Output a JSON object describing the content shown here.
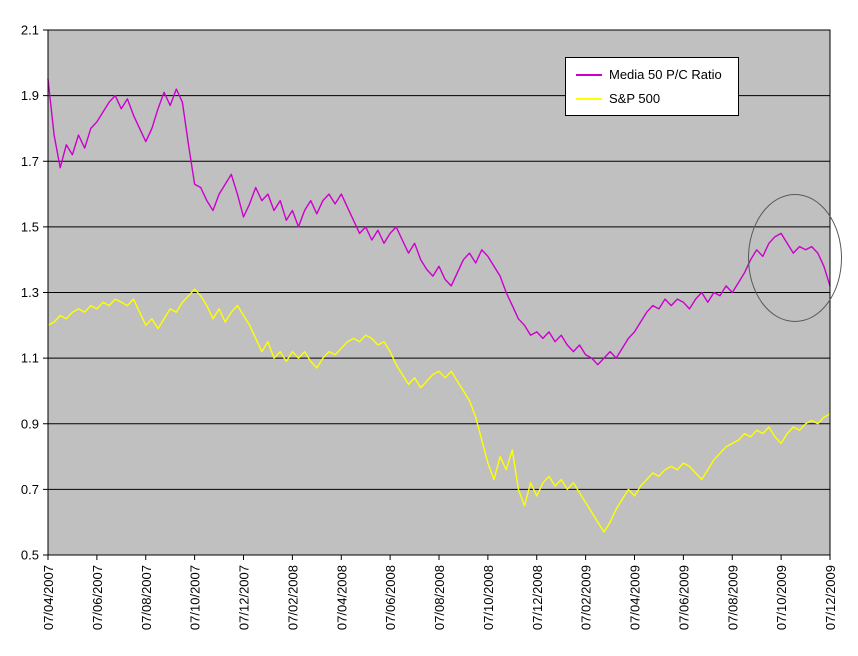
{
  "chart_data": {
    "type": "line",
    "title": "",
    "xlabel": "",
    "ylabel": "",
    "grid": true,
    "plot_background": "#c0c0c0",
    "gridline_color": "#000000",
    "legend_position": "top-right",
    "ylim": [
      0.5,
      2.1
    ],
    "y_tick_step": 0.2,
    "y_tick_labels": [
      "2.1",
      "1.9",
      "1.7",
      "1.5",
      "1.3",
      "1.1",
      "0.9",
      "0.7",
      "0.5"
    ],
    "x_tick_labels": [
      "07/04/2007",
      "07/06/2007",
      "07/08/2007",
      "07/10/2007",
      "07/12/2007",
      "07/02/2008",
      "07/04/2008",
      "07/06/2008",
      "07/08/2008",
      "07/10/2008",
      "07/12/2008",
      "07/02/2009",
      "07/04/2009",
      "07/06/2009",
      "07/08/2009",
      "07/10/2009",
      "07/12/2009"
    ],
    "series": [
      {
        "name": "Media 50 P/C Ratio",
        "color": "#cc00cc",
        "values": [
          1.95,
          1.78,
          1.68,
          1.75,
          1.72,
          1.78,
          1.74,
          1.8,
          1.82,
          1.85,
          1.88,
          1.9,
          1.86,
          1.89,
          1.84,
          1.8,
          1.76,
          1.8,
          1.86,
          1.91,
          1.87,
          1.92,
          1.88,
          1.75,
          1.63,
          1.62,
          1.58,
          1.55,
          1.6,
          1.63,
          1.66,
          1.6,
          1.53,
          1.57,
          1.62,
          1.58,
          1.6,
          1.55,
          1.58,
          1.52,
          1.55,
          1.5,
          1.55,
          1.58,
          1.54,
          1.58,
          1.6,
          1.57,
          1.6,
          1.56,
          1.52,
          1.48,
          1.5,
          1.46,
          1.49,
          1.45,
          1.48,
          1.5,
          1.46,
          1.42,
          1.45,
          1.4,
          1.37,
          1.35,
          1.38,
          1.34,
          1.32,
          1.36,
          1.4,
          1.42,
          1.39,
          1.43,
          1.41,
          1.38,
          1.35,
          1.3,
          1.26,
          1.22,
          1.2,
          1.17,
          1.18,
          1.16,
          1.18,
          1.15,
          1.17,
          1.14,
          1.12,
          1.14,
          1.11,
          1.1,
          1.08,
          1.1,
          1.12,
          1.1,
          1.13,
          1.16,
          1.18,
          1.21,
          1.24,
          1.26,
          1.25,
          1.28,
          1.26,
          1.28,
          1.27,
          1.25,
          1.28,
          1.3,
          1.27,
          1.3,
          1.29,
          1.32,
          1.3,
          1.33,
          1.36,
          1.4,
          1.43,
          1.41,
          1.45,
          1.47,
          1.48,
          1.45,
          1.42,
          1.44,
          1.43,
          1.44,
          1.42,
          1.38,
          1.32
        ]
      },
      {
        "name": "S&P 500",
        "color": "#ffff00",
        "values": [
          1.2,
          1.21,
          1.23,
          1.22,
          1.24,
          1.25,
          1.24,
          1.26,
          1.25,
          1.27,
          1.26,
          1.28,
          1.27,
          1.26,
          1.28,
          1.24,
          1.2,
          1.22,
          1.19,
          1.22,
          1.25,
          1.24,
          1.27,
          1.29,
          1.31,
          1.29,
          1.26,
          1.22,
          1.25,
          1.21,
          1.24,
          1.26,
          1.23,
          1.2,
          1.16,
          1.12,
          1.15,
          1.1,
          1.12,
          1.09,
          1.12,
          1.1,
          1.12,
          1.09,
          1.07,
          1.1,
          1.12,
          1.11,
          1.13,
          1.15,
          1.16,
          1.15,
          1.17,
          1.16,
          1.14,
          1.15,
          1.12,
          1.08,
          1.05,
          1.02,
          1.04,
          1.01,
          1.03,
          1.05,
          1.06,
          1.04,
          1.06,
          1.03,
          1.0,
          0.97,
          0.92,
          0.85,
          0.78,
          0.73,
          0.8,
          0.76,
          0.82,
          0.7,
          0.65,
          0.72,
          0.68,
          0.72,
          0.74,
          0.71,
          0.73,
          0.7,
          0.72,
          0.69,
          0.66,
          0.63,
          0.6,
          0.57,
          0.6,
          0.64,
          0.67,
          0.7,
          0.68,
          0.71,
          0.73,
          0.75,
          0.74,
          0.76,
          0.77,
          0.76,
          0.78,
          0.77,
          0.75,
          0.73,
          0.76,
          0.79,
          0.81,
          0.83,
          0.84,
          0.85,
          0.87,
          0.86,
          0.88,
          0.87,
          0.89,
          0.86,
          0.84,
          0.87,
          0.89,
          0.88,
          0.9,
          0.91,
          0.9,
          0.92,
          0.93
        ]
      }
    ],
    "annotation": {
      "type": "ellipse",
      "note": "hand-drawn ellipse circling the most recent Media 50 P/C Ratio values near 07/10/2009 - 07/12/2009"
    }
  },
  "legend": {
    "items": [
      {
        "label": "Media 50 P/C Ratio",
        "color": "#cc00cc"
      },
      {
        "label": "S&P 500",
        "color": "#ffff00"
      }
    ]
  }
}
